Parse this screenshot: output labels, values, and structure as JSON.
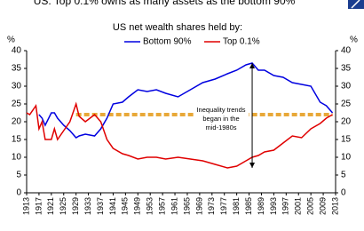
{
  "chart_data": {
    "type": "line",
    "title": "US: Top 0.1% owns as many assets as the bottom 90%",
    "subtitle": "US net wealth shares held by:",
    "y_unit_left": "%",
    "y_unit_right": "%",
    "x": [
      1913,
      1914,
      1916,
      1917,
      1918,
      1919,
      1921,
      1922,
      1923,
      1925,
      1927,
      1929,
      1930,
      1932,
      1935,
      1937,
      1939,
      1941,
      1944,
      1946,
      1949,
      1952,
      1955,
      1958,
      1962,
      1966,
      1970,
      1974,
      1978,
      1981,
      1984,
      1986,
      1988,
      1990,
      1993,
      1996,
      1999,
      2002,
      2005,
      2008,
      2010,
      2012
    ],
    "series": [
      {
        "name": "Bottom 90%",
        "color": "#0000e0",
        "values": [
          null,
          null,
          null,
          22,
          21,
          19,
          22.5,
          22.5,
          21,
          19,
          17.5,
          15.5,
          16,
          16.5,
          16,
          18,
          21,
          25,
          25.5,
          27,
          29,
          28.5,
          29,
          28,
          27,
          29,
          31,
          32,
          33.5,
          34.5,
          36,
          36.5,
          34.5,
          34.5,
          33,
          32.5,
          31,
          30.5,
          30,
          25.5,
          24.5,
          22.5
        ]
      },
      {
        "name": "Top 0.1%",
        "color": "#e00000",
        "values": [
          22.5,
          22,
          24.5,
          18,
          20,
          15,
          15,
          18,
          15,
          17.5,
          20,
          25,
          21.5,
          20,
          22,
          20,
          15,
          12.5,
          11,
          10.5,
          9.5,
          10,
          10,
          9.5,
          10,
          9.5,
          9,
          8,
          7,
          7.5,
          9,
          10,
          10.5,
          11.5,
          12,
          14,
          16,
          15.5,
          18,
          19.5,
          21,
          22
        ]
      }
    ],
    "xlim": [
      1913,
      2013
    ],
    "xticks": [
      1913,
      1917,
      1921,
      1925,
      1929,
      1933,
      1937,
      1941,
      1945,
      1949,
      1953,
      1957,
      1961,
      1965,
      1969,
      1973,
      1977,
      1981,
      1985,
      1989,
      1993,
      1997,
      2001,
      2005,
      2009,
      2013
    ],
    "ylim": [
      0,
      40
    ],
    "yticks": [
      0,
      5,
      10,
      15,
      20,
      25,
      30,
      35,
      40
    ],
    "y2lim": [
      0,
      40
    ],
    "y2ticks": [
      0,
      5,
      10,
      15,
      20,
      25,
      30,
      35,
      40
    ],
    "reference_line": {
      "y": 22,
      "x": [
        1929,
        2012
      ],
      "color": "#e8a838"
    },
    "arrow": {
      "x": 1986,
      "y": [
        36.5,
        7
      ]
    },
    "annotation_lines": [
      "Inequality trends",
      "began in the",
      "mid-1980s"
    ]
  }
}
